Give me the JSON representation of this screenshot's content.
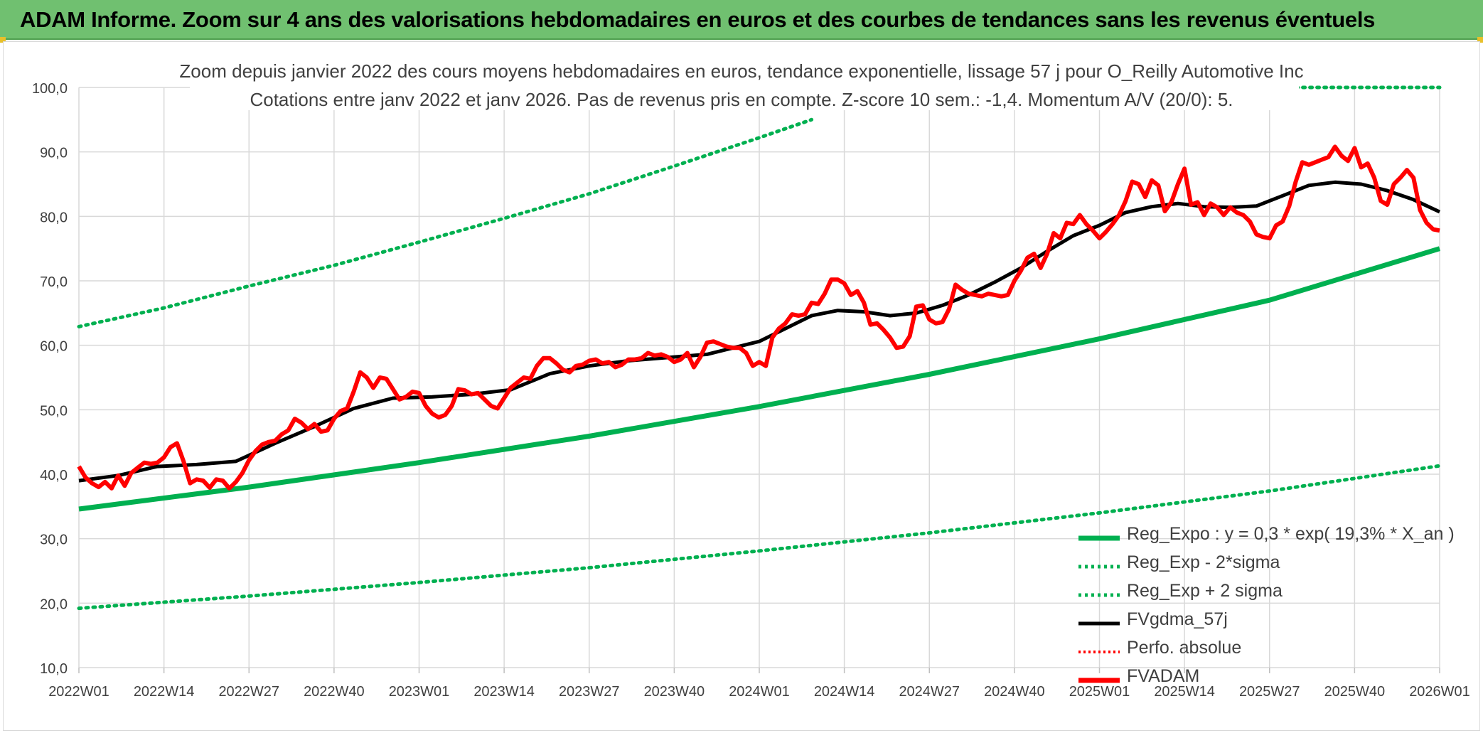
{
  "banner": {
    "title": "ADAM Informe. Zoom sur 4 ans des valorisations hebdomadaires en euros et des courbes de tendances sans les revenus éventuels"
  },
  "chart_data": {
    "type": "line",
    "title": "Zoom depuis janvier 2022 des cours moyens hebdomadaires en euros, tendance exponentielle, lissage 57 j pour O_Reilly Automotive Inc",
    "subtitle": "Cotations entre janv 2022 et janv 2026. Pas de revenus pris en compte. Z-score 10 sem.: -1,4. Momentum A/V (20/0): 5.",
    "xlabel": "",
    "ylabel": "",
    "ylim": [
      10,
      100
    ],
    "y_ticks": [
      "10,0",
      "20,0",
      "30,0",
      "40,0",
      "50,0",
      "60,0",
      "70,0",
      "80,0",
      "90,0",
      "100,0"
    ],
    "x_range_weeks": [
      0,
      208
    ],
    "x_ticks": [
      {
        "week": 0,
        "label": "2022W01"
      },
      {
        "week": 13,
        "label": "2022W14"
      },
      {
        "week": 26,
        "label": "2022W27"
      },
      {
        "week": 39,
        "label": "2022W40"
      },
      {
        "week": 52,
        "label": "2023W01"
      },
      {
        "week": 65,
        "label": "2023W14"
      },
      {
        "week": 78,
        "label": "2023W27"
      },
      {
        "week": 91,
        "label": "2023W40"
      },
      {
        "week": 104,
        "label": "2024W01"
      },
      {
        "week": 117,
        "label": "2024W14"
      },
      {
        "week": 130,
        "label": "2024W27"
      },
      {
        "week": 143,
        "label": "2024W40"
      },
      {
        "week": 156,
        "label": "2025W01"
      },
      {
        "week": 169,
        "label": "2025W14"
      },
      {
        "week": 182,
        "label": "2025W27"
      },
      {
        "week": 195,
        "label": "2025W40"
      },
      {
        "week": 208,
        "label": "2026W01"
      }
    ],
    "grid": true,
    "legend_position": "bottom-right",
    "series": [
      {
        "name": "Reg_Expo : y = 0,3 * exp( 19,3% * X_an )",
        "color": "#00b050",
        "style": "solid",
        "x": [
          0,
          26,
          52,
          78,
          104,
          130,
          156,
          182,
          208
        ],
        "y": [
          34.6,
          38.0,
          41.8,
          45.9,
          50.5,
          55.5,
          61.0,
          67.0,
          75.0
        ]
      },
      {
        "name": "Reg_Exp - 2*sigma",
        "color": "#00b050",
        "style": "dotted",
        "x": [
          0,
          26,
          52,
          78,
          104,
          130,
          156,
          182,
          208
        ],
        "y": [
          19.2,
          21.1,
          23.2,
          25.5,
          28.1,
          30.9,
          34.0,
          37.4,
          41.3
        ]
      },
      {
        "name": "Reg_Exp + 2 sigma",
        "color": "#00b050",
        "style": "dotted",
        "x": [
          0,
          13,
          26,
          39,
          52,
          65,
          78,
          91,
          104,
          112
        ],
        "y": [
          62.9,
          65.8,
          69.2,
          72.4,
          76.0,
          79.7,
          83.5,
          87.8,
          92.2,
          95.0
        ],
        "x2": [
          186,
          208
        ],
        "y2": [
          100.0,
          100.0
        ]
      },
      {
        "name": "FVgdma_57j",
        "color": "#000000",
        "style": "solid",
        "x": [
          0,
          6,
          12,
          18,
          24,
          30,
          36,
          42,
          48,
          54,
          60,
          66,
          72,
          78,
          84,
          90,
          96,
          100,
          104,
          108,
          112,
          116,
          120,
          124,
          128,
          132,
          136,
          140,
          144,
          148,
          152,
          156,
          160,
          164,
          168,
          172,
          176,
          180,
          184,
          188,
          192,
          196,
          200,
          204,
          208
        ],
        "y": [
          39.0,
          39.8,
          41.2,
          41.5,
          42.0,
          44.8,
          47.4,
          50.2,
          51.8,
          52.0,
          52.4,
          53.1,
          55.6,
          56.8,
          57.6,
          58.1,
          58.6,
          59.6,
          60.6,
          62.6,
          64.6,
          65.4,
          65.2,
          64.6,
          65.0,
          66.2,
          67.8,
          69.8,
          72.0,
          74.6,
          77.0,
          78.6,
          80.6,
          81.5,
          82.0,
          81.5,
          81.4,
          81.6,
          83.2,
          84.8,
          85.3,
          85.0,
          84.0,
          82.6,
          80.7
        ]
      },
      {
        "name": "Perfo. absolue",
        "color": "#ff0000",
        "style": "dotted",
        "x": [],
        "y": []
      },
      {
        "name": "FVADAM",
        "color": "#ff0000",
        "style": "solid",
        "x": [
          0,
          1,
          2,
          3,
          4,
          5,
          6,
          7,
          8,
          9,
          10,
          11,
          12,
          13,
          14,
          15,
          16,
          17,
          18,
          19,
          20,
          21,
          22,
          23,
          24,
          25,
          26,
          27,
          28,
          29,
          30,
          31,
          32,
          33,
          34,
          35,
          36,
          37,
          38,
          39,
          40,
          41,
          42,
          43,
          44,
          45,
          46,
          47,
          48,
          49,
          50,
          51,
          52,
          53,
          54,
          55,
          56,
          57,
          58,
          59,
          60,
          61,
          62,
          63,
          64,
          65,
          66,
          67,
          68,
          69,
          70,
          71,
          72,
          73,
          74,
          75,
          76,
          77,
          78,
          79,
          80,
          81,
          82,
          83,
          84,
          85,
          86,
          87,
          88,
          89,
          90,
          91,
          92,
          93,
          94,
          95,
          96,
          97,
          98,
          99,
          100,
          101,
          102,
          103,
          104,
          105,
          106,
          107,
          108,
          109,
          110,
          111,
          112,
          113,
          114,
          115,
          116,
          117,
          118,
          119,
          120,
          121,
          122,
          123,
          124,
          125,
          126,
          127,
          128,
          129,
          130,
          131,
          132,
          133,
          134,
          135,
          136,
          137,
          138,
          139,
          140,
          141,
          142,
          143,
          144,
          145,
          146,
          147,
          148,
          149,
          150,
          151,
          152,
          153,
          154,
          155,
          156,
          157,
          158,
          159,
          160,
          161,
          162,
          163,
          164,
          165,
          166,
          167,
          168,
          169,
          170,
          171,
          172,
          173,
          174,
          175,
          176,
          177,
          178,
          179,
          180,
          181,
          182,
          183,
          184,
          185,
          186,
          187,
          188,
          189,
          190,
          191,
          192,
          193,
          194,
          195,
          196,
          197,
          198,
          199,
          200,
          201,
          202,
          203,
          204,
          205,
          206,
          207,
          208
        ],
        "y": [
          41.2,
          39.5,
          38.6,
          38.0,
          38.8,
          37.8,
          39.8,
          38.2,
          40.2,
          41.0,
          41.8,
          41.6,
          41.8,
          42.6,
          44.2,
          44.8,
          42.0,
          38.6,
          39.2,
          39.0,
          37.9,
          39.2,
          39.0,
          37.8,
          38.8,
          40.2,
          42.2,
          43.6,
          44.6,
          45.0,
          45.2,
          46.2,
          46.8,
          48.6,
          48.0,
          47.0,
          47.8,
          46.6,
          46.8,
          48.6,
          49.8,
          50.2,
          52.8,
          55.8,
          55.0,
          53.4,
          55.0,
          54.8,
          53.2,
          51.6,
          52.0,
          52.8,
          52.6,
          50.6,
          49.4,
          48.8,
          49.2,
          50.6,
          53.2,
          53.0,
          52.4,
          52.6,
          51.6,
          50.6,
          50.2,
          51.8,
          53.4,
          54.2,
          55.0,
          54.8,
          56.8,
          58.0,
          58.0,
          57.2,
          56.2,
          55.8,
          56.8,
          57.0,
          57.6,
          57.8,
          57.2,
          57.4,
          56.6,
          57.0,
          57.8,
          57.8,
          58.0,
          58.8,
          58.4,
          58.6,
          58.2,
          57.4,
          57.8,
          58.8,
          56.6,
          58.2,
          60.4,
          60.6,
          60.2,
          59.8,
          59.6,
          59.6,
          58.8,
          56.8,
          57.4,
          56.8,
          61.2,
          62.6,
          63.4,
          64.8,
          64.6,
          64.8,
          66.6,
          66.4,
          68.0,
          70.2,
          70.2,
          69.6,
          67.8,
          68.4,
          66.6,
          63.2,
          63.4,
          62.4,
          61.2,
          59.6,
          59.8,
          61.4,
          66.0,
          66.2,
          64.0,
          63.4,
          63.6,
          65.6,
          69.4,
          68.6,
          68.0,
          67.8,
          67.6,
          68.0,
          67.8,
          67.6,
          67.8,
          70.0,
          71.6,
          73.6,
          74.2,
          72.0,
          74.2,
          77.4,
          76.6,
          79.0,
          78.8,
          80.2,
          78.8,
          77.8,
          76.6,
          77.6,
          78.8,
          80.2,
          82.4,
          85.4,
          85.0,
          83.0,
          85.6,
          84.8,
          80.8,
          82.2,
          85.0,
          87.4,
          81.8,
          82.2,
          80.2,
          82.0,
          81.4,
          80.2,
          81.4,
          80.6,
          80.2,
          79.2,
          77.2,
          76.8,
          76.6,
          78.6,
          79.2,
          81.6,
          85.4,
          88.4,
          88.0,
          88.4,
          88.8,
          89.2,
          90.8,
          89.4,
          88.6,
          90.6,
          87.6,
          88.2,
          86.0,
          82.4,
          81.8,
          85.0,
          86.0,
          87.2,
          86.0,
          81.0,
          79.0,
          78.0,
          77.8
        ]
      }
    ]
  }
}
